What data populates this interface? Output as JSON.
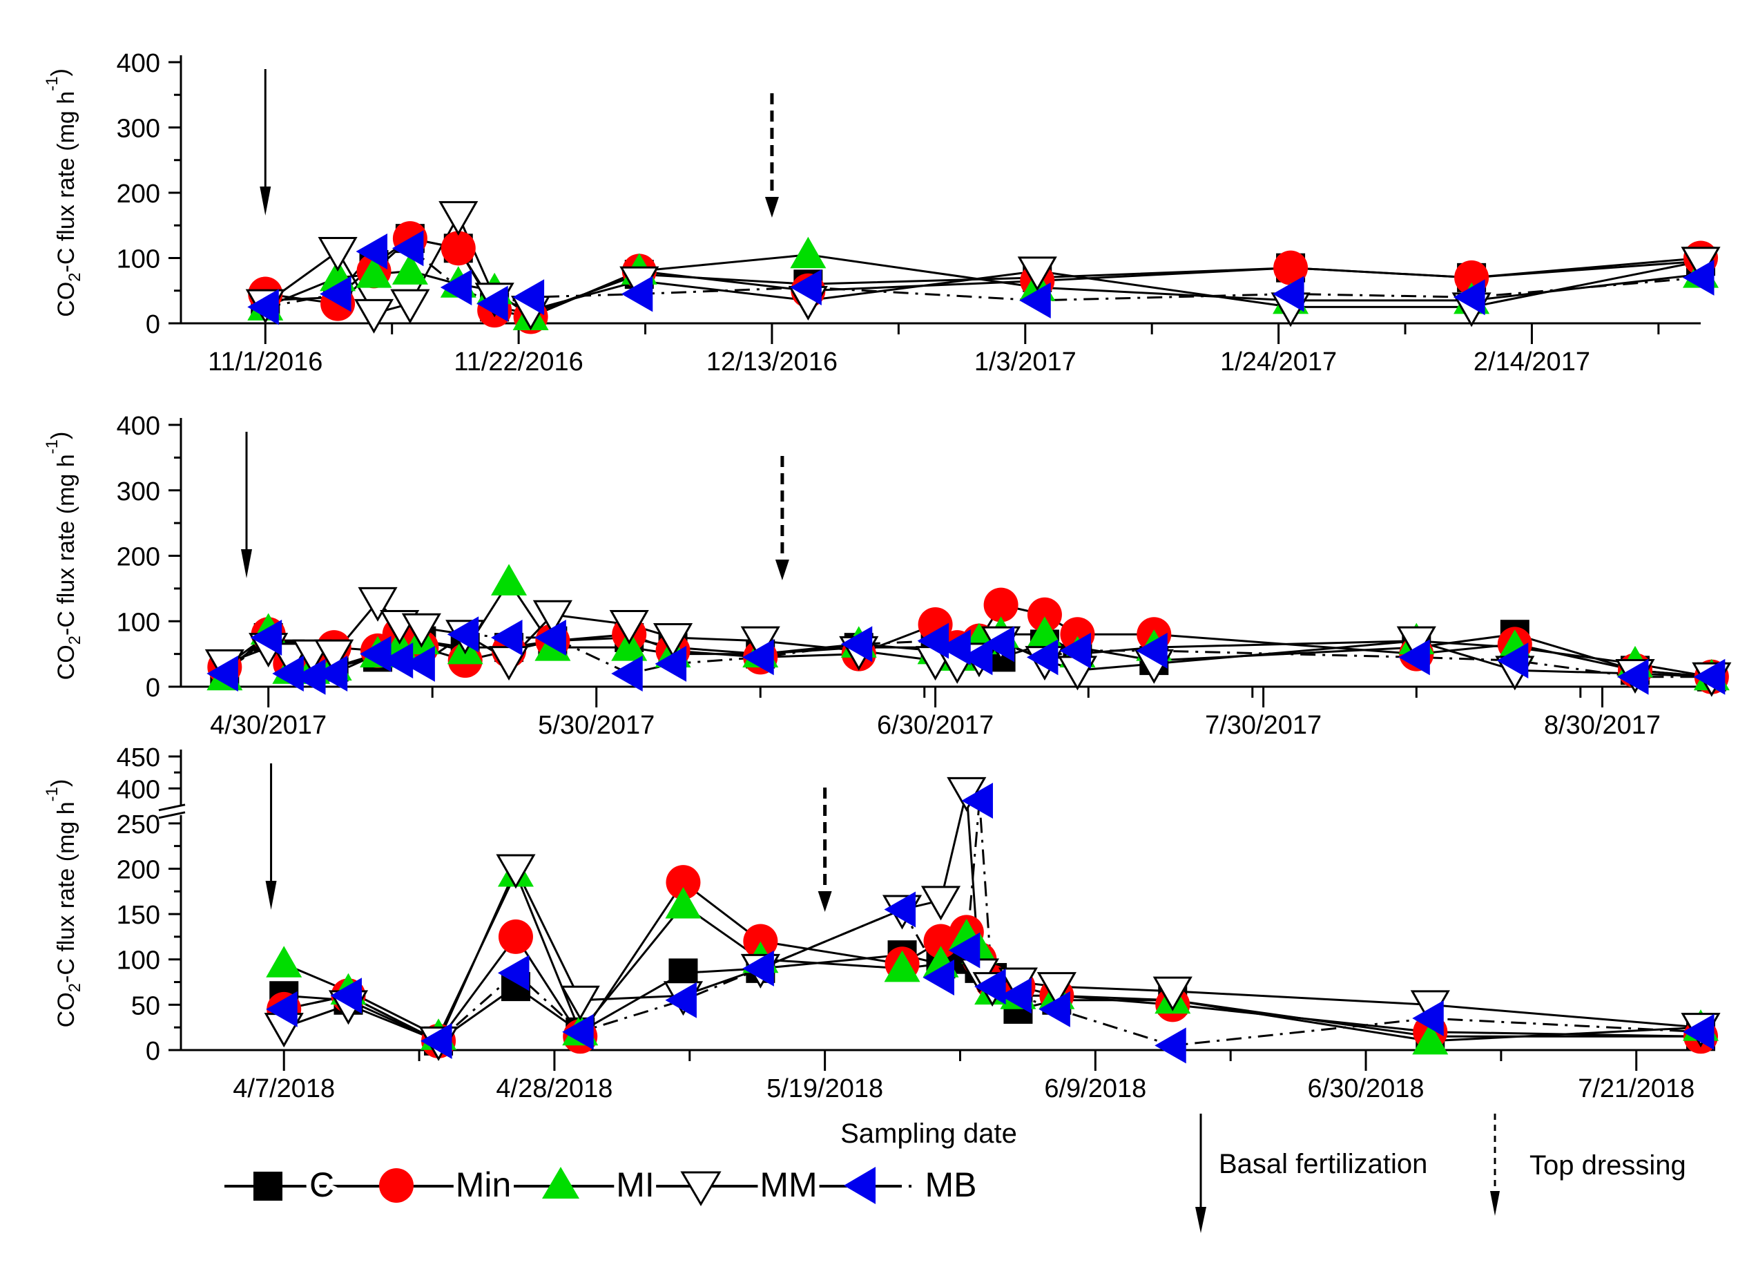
{
  "chart_data": {
    "type": "line",
    "xlabel": "Sampling date",
    "ylabel_prefix": "CO",
    "ylabel_sub": "2",
    "ylabel_mid": "-C flux rate (mg h",
    "ylabel_sup": "-1",
    "ylabel_end": ")",
    "legend": {
      "series": [
        "C",
        "Min",
        "MI",
        "MM",
        "MB"
      ],
      "arrows": [
        "Basal fertilization",
        "Top dressing"
      ]
    },
    "series_styles": [
      {
        "name": "C",
        "marker": "square",
        "fill": "#000000",
        "dash": "solid"
      },
      {
        "name": "Min",
        "marker": "circle",
        "fill": "#ff0000",
        "dash": "solid"
      },
      {
        "name": "MI",
        "marker": "triangle-up",
        "fill": "#00dd00",
        "dash": "solid"
      },
      {
        "name": "MM",
        "marker": "triangle-down",
        "fill": "#ffffff",
        "dash": "solid"
      },
      {
        "name": "MB",
        "marker": "triangle-left",
        "fill": "#0000ee",
        "dash": "dashdot"
      }
    ],
    "panels": [
      {
        "x_ticks": [
          "11/1/2016",
          "11/22/2016",
          "12/13/2016",
          "1/3/2017",
          "1/24/2017",
          "2/14/2017"
        ],
        "x_range": [
          "2016-10-25",
          "2017-02-28"
        ],
        "y_ticks": [
          "0",
          "100",
          "200",
          "300",
          "400"
        ],
        "ylim": [
          0,
          400
        ],
        "axis_break": false,
        "basal_fertilization": "2016-11-01",
        "top_dressing": "2016-12-13",
        "x": [
          "2016-11-01",
          "2016-11-07",
          "2016-11-10",
          "2016-11-13",
          "2016-11-17",
          "2016-11-20",
          "2016-11-23",
          "2016-12-02",
          "2016-12-16",
          "2017-01-04",
          "2017-01-25",
          "2017-02-09",
          "2017-02-28"
        ],
        "series": [
          {
            "name": "C",
            "values": [
              35,
              40,
              90,
              130,
              115,
              25,
              15,
              75,
              60,
              70,
              85,
              70,
              95
            ]
          },
          {
            "name": "Min",
            "values": [
              45,
              30,
              80,
              130,
              115,
              20,
              10,
              80,
              50,
              65,
              85,
              70,
              100
            ]
          },
          {
            "name": "MI",
            "values": [
              25,
              70,
              75,
              80,
              60,
              50,
              10,
              80,
              105,
              55,
              35,
              35,
              75
            ]
          },
          {
            "name": "MM",
            "values": [
              30,
              110,
              15,
              30,
              165,
              40,
              20,
              65,
              35,
              80,
              25,
              25,
              95
            ]
          },
          {
            "name": "MB",
            "values": [
              25,
              45,
              110,
              115,
              55,
              30,
              40,
              45,
              55,
              35,
              45,
              40,
              70
            ]
          }
        ]
      },
      {
        "x_ticks": [
          "4/30/2017",
          "5/30/2017",
          "6/30/2017",
          "7/30/2017",
          "8/30/2017"
        ],
        "x_range": [
          "2017-04-22",
          "2017-09-08"
        ],
        "y_ticks": [
          "0",
          "100",
          "200",
          "300",
          "400"
        ],
        "ylim": [
          0,
          400
        ],
        "axis_break": false,
        "basal_fertilization": "2017-04-28",
        "top_dressing": "2017-06-16",
        "x": [
          "2017-04-26",
          "2017-04-30",
          "2017-05-02",
          "2017-05-04",
          "2017-05-06",
          "2017-05-10",
          "2017-05-12",
          "2017-05-14",
          "2017-05-18",
          "2017-05-22",
          "2017-05-26",
          "2017-06-02",
          "2017-06-06",
          "2017-06-14",
          "2017-06-23",
          "2017-06-30",
          "2017-07-02",
          "2017-07-04",
          "2017-07-06",
          "2017-07-10",
          "2017-07-13",
          "2017-07-20",
          "2017-08-13",
          "2017-08-22",
          "2017-09-02",
          "2017-09-09"
        ],
        "series": [
          {
            "name": "C",
            "values": [
              25,
              75,
              50,
              40,
              30,
              45,
              55,
              70,
              60,
              60,
              70,
              75,
              60,
              50,
              60,
              60,
              55,
              50,
              45,
              65,
              60,
              40,
              60,
              80,
              25,
              15
            ]
          },
          {
            "name": "Min",
            "values": [
              30,
              80,
              35,
              40,
              60,
              55,
              80,
              60,
              40,
              55,
              70,
              80,
              55,
              45,
              50,
              95,
              60,
              70,
              125,
              110,
              80,
              80,
              50,
              65,
              25,
              15
            ]
          },
          {
            "name": "MI",
            "values": [
              15,
              85,
              25,
              25,
              30,
              50,
              60,
              70,
              55,
              160,
              60,
              60,
              50,
              50,
              65,
              55,
              45,
              70,
              80,
              80,
              50,
              60,
              70,
              60,
              35,
              15
            ]
          },
          {
            "name": "MM",
            "values": [
              35,
              60,
              45,
              50,
              50,
              130,
              95,
              90,
              80,
              40,
              110,
              95,
              75,
              70,
              55,
              40,
              35,
              45,
              70,
              40,
              25,
              35,
              70,
              25,
              20,
              15
            ]
          },
          {
            "name": "MB",
            "values": [
              20,
              75,
              20,
              15,
              20,
              50,
              40,
              35,
              80,
              75,
              75,
              20,
              35,
              45,
              65,
              70,
              60,
              45,
              65,
              45,
              55,
              55,
              45,
              40,
              15,
              15
            ]
          }
        ]
      },
      {
        "x_ticks": [
          "4/7/2018",
          "4/28/2018",
          "5/19/2018",
          "6/9/2018",
          "6/30/2018",
          "7/21/2018"
        ],
        "x_range": [
          "2018-03-30",
          "2018-07-26"
        ],
        "y_ticks": [
          "0",
          "50",
          "100",
          "150",
          "200",
          "250",
          "400",
          "450"
        ],
        "ylim": [
          0,
          450
        ],
        "axis_break": true,
        "axis_break_between": [
          280,
          380
        ],
        "basal_fertilization": "2018-04-06",
        "top_dressing": "2018-05-19",
        "x": [
          "2018-04-07",
          "2018-04-12",
          "2018-04-19",
          "2018-04-25",
          "2018-04-30",
          "2018-05-08",
          "2018-05-14",
          "2018-05-25",
          "2018-05-28",
          "2018-05-30",
          "2018-05-31",
          "2018-06-01",
          "2018-06-03",
          "2018-06-06",
          "2018-06-15",
          "2018-07-05",
          "2018-07-26"
        ],
        "series": [
          {
            "name": "C",
            "values": [
              60,
              55,
              10,
              70,
              20,
              85,
              90,
              105,
              95,
              100,
              90,
              80,
              45,
              55,
              55,
              15,
              15
            ]
          },
          {
            "name": "Min",
            "values": [
              45,
              60,
              10,
              125,
              15,
              185,
              120,
              95,
              120,
              130,
              100,
              75,
              70,
              60,
              50,
              20,
              15
            ]
          },
          {
            "name": "MI",
            "values": [
              95,
              65,
              15,
              195,
              20,
              160,
              100,
              90,
              95,
              125,
              110,
              65,
              60,
              60,
              55,
              10,
              25
            ]
          },
          {
            "name": "MM",
            "values": [
              25,
              50,
              10,
              200,
              55,
              60,
              90,
              155,
              165,
              395,
              85,
              70,
              75,
              70,
              65,
              50,
              25
            ]
          },
          {
            "name": "MB",
            "values": [
              45,
              60,
              10,
              85,
              20,
              55,
              90,
              155,
              80,
              110,
              275,
              70,
              60,
              45,
              5,
              35,
              20
            ]
          }
        ]
      }
    ]
  }
}
